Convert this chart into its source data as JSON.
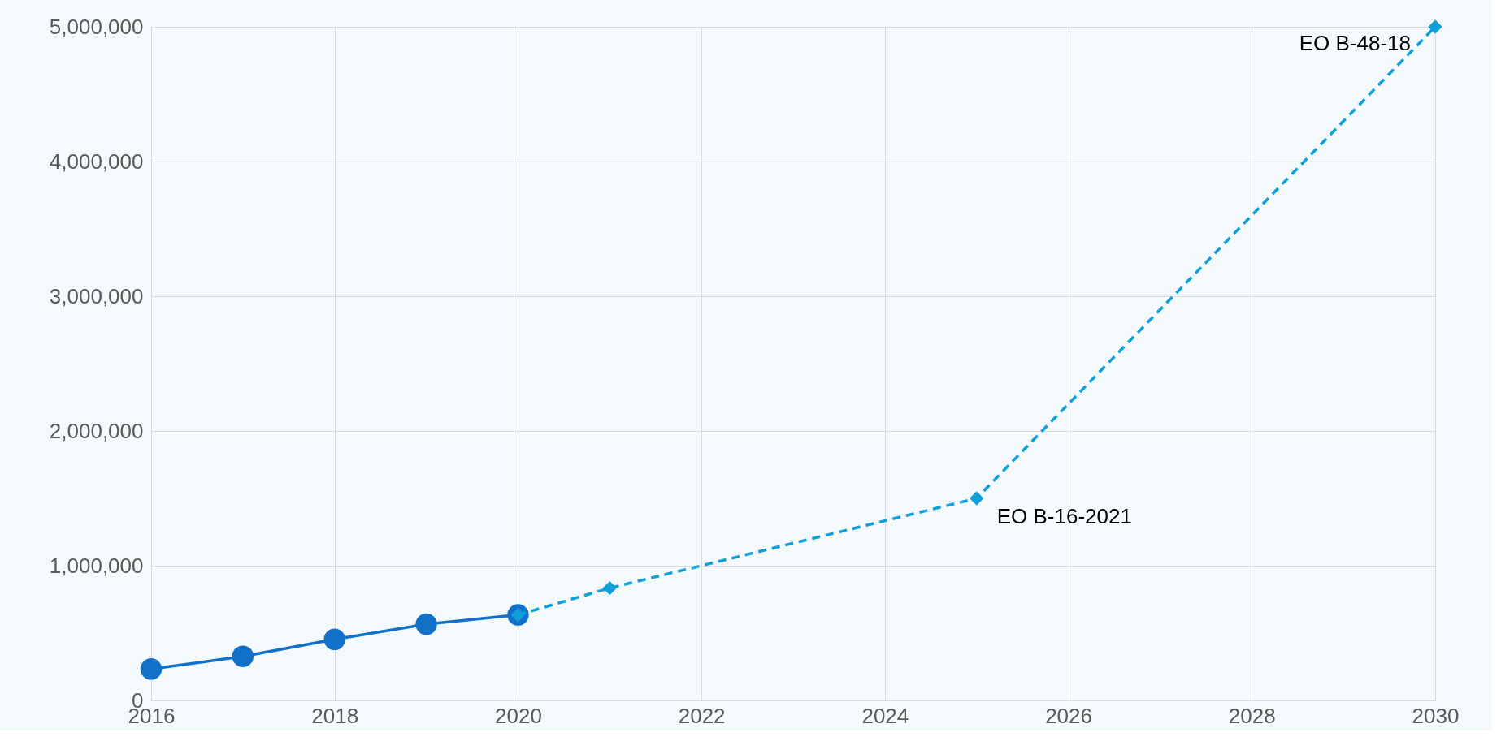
{
  "chart_data": {
    "type": "line",
    "xlim": [
      2016,
      2030
    ],
    "xticks": [
      2016,
      2018,
      2020,
      2022,
      2024,
      2026,
      2028,
      2030
    ],
    "ylim": [
      0,
      5000000
    ],
    "yticks": [
      0,
      {
        "value": 1000000,
        "label": "1,000,000"
      },
      {
        "value": 2000000,
        "label": "2,000,000"
      },
      {
        "value": 3000000,
        "label": "3,000,000"
      },
      {
        "value": 4000000,
        "label": "4,000,000"
      },
      {
        "value": 5000000,
        "label": "5,000,000"
      }
    ],
    "grid": true,
    "series": [
      {
        "color": "#1170c8",
        "marker": "circle",
        "line_style": "solid",
        "x": [
          2016,
          2017,
          2018,
          2019,
          2020
        ],
        "values": [
          233000,
          327000,
          453000,
          566000,
          635000
        ]
      },
      {
        "color": "#0ea0db",
        "marker": "diamond",
        "line_style": "dashed",
        "x": [
          2020,
          2021,
          2025,
          2030
        ],
        "values": [
          635000,
          834000,
          1500000,
          5000000
        ]
      }
    ],
    "annotations": [
      {
        "text": "EO B-16-2021",
        "x": 2025,
        "y": 1500000
      },
      {
        "text": "EO B-48-18",
        "x": 2030,
        "y": 5000000
      }
    ]
  }
}
